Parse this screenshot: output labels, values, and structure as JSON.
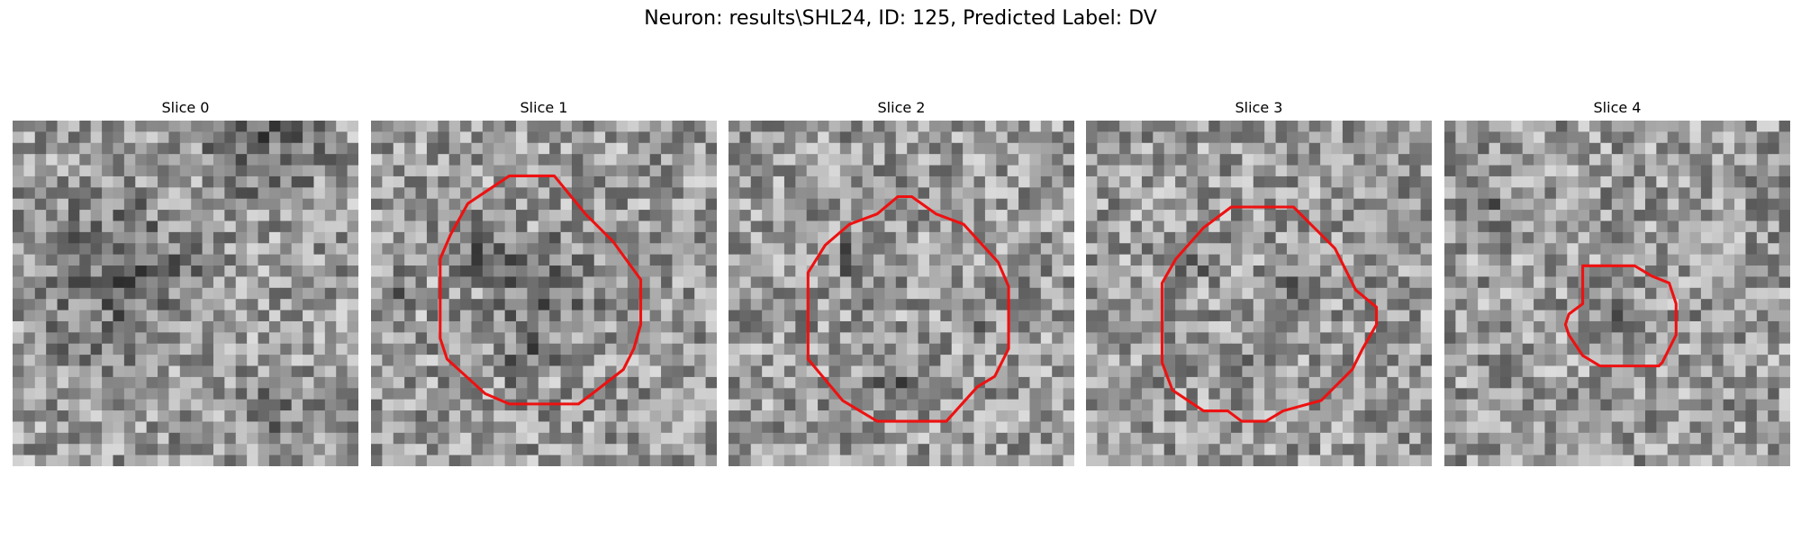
{
  "figure": {
    "title": "Neuron: results\\SHL24, ID: 125, Predicted Label: DV"
  },
  "panels": [
    {
      "title": "Slice 0",
      "seed": 11,
      "has_contour": false,
      "dark": [
        [
          0.72,
          0.05,
          0.25
        ],
        [
          0.3,
          0.45,
          0.35
        ],
        [
          0.75,
          0.82,
          0.12
        ]
      ],
      "contour": []
    },
    {
      "title": "Slice 1",
      "seed": 23,
      "has_contour": true,
      "dark": [
        [
          0.33,
          0.38,
          0.12
        ],
        [
          0.5,
          0.5,
          0.22
        ],
        [
          0.45,
          0.7,
          0.1
        ],
        [
          0.08,
          0.5,
          0.08
        ]
      ],
      "contour": [
        [
          0.4,
          0.16
        ],
        [
          0.53,
          0.16
        ],
        [
          0.62,
          0.27
        ],
        [
          0.7,
          0.35
        ],
        [
          0.78,
          0.46
        ],
        [
          0.78,
          0.59
        ],
        [
          0.76,
          0.66
        ],
        [
          0.73,
          0.72
        ],
        [
          0.64,
          0.79
        ],
        [
          0.6,
          0.82
        ],
        [
          0.4,
          0.82
        ],
        [
          0.33,
          0.79
        ],
        [
          0.22,
          0.69
        ],
        [
          0.2,
          0.63
        ],
        [
          0.2,
          0.4
        ],
        [
          0.23,
          0.33
        ],
        [
          0.28,
          0.24
        ]
      ]
    },
    {
      "title": "Slice 2",
      "seed": 37,
      "has_contour": true,
      "dark": [
        [
          0.35,
          0.4,
          0.08
        ],
        [
          0.48,
          0.78,
          0.1
        ],
        [
          0.05,
          0.6,
          0.06
        ],
        [
          0.7,
          0.55,
          0.08
        ]
      ],
      "contour": [
        [
          0.49,
          0.22
        ],
        [
          0.53,
          0.22
        ],
        [
          0.6,
          0.27
        ],
        [
          0.68,
          0.3
        ],
        [
          0.78,
          0.41
        ],
        [
          0.81,
          0.48
        ],
        [
          0.81,
          0.66
        ],
        [
          0.77,
          0.74
        ],
        [
          0.72,
          0.77
        ],
        [
          0.63,
          0.87
        ],
        [
          0.43,
          0.87
        ],
        [
          0.33,
          0.81
        ],
        [
          0.23,
          0.69
        ],
        [
          0.23,
          0.44
        ],
        [
          0.28,
          0.36
        ],
        [
          0.35,
          0.3
        ],
        [
          0.43,
          0.27
        ]
      ]
    },
    {
      "title": "Slice 3",
      "seed": 53,
      "has_contour": true,
      "dark": [
        [
          0.3,
          0.42,
          0.08
        ],
        [
          0.45,
          0.72,
          0.1
        ],
        [
          0.6,
          0.5,
          0.08
        ]
      ],
      "contour": [
        [
          0.42,
          0.25
        ],
        [
          0.6,
          0.25
        ],
        [
          0.66,
          0.31
        ],
        [
          0.72,
          0.37
        ],
        [
          0.78,
          0.49
        ],
        [
          0.84,
          0.54
        ],
        [
          0.84,
          0.59
        ],
        [
          0.8,
          0.66
        ],
        [
          0.77,
          0.72
        ],
        [
          0.68,
          0.81
        ],
        [
          0.57,
          0.84
        ],
        [
          0.52,
          0.87
        ],
        [
          0.45,
          0.87
        ],
        [
          0.41,
          0.84
        ],
        [
          0.34,
          0.84
        ],
        [
          0.25,
          0.78
        ],
        [
          0.22,
          0.7
        ],
        [
          0.22,
          0.47
        ],
        [
          0.26,
          0.4
        ],
        [
          0.34,
          0.31
        ]
      ]
    },
    {
      "title": "Slice 4",
      "seed": 71,
      "has_contour": true,
      "dark": [
        [
          0.1,
          0.25,
          0.1
        ],
        [
          0.5,
          0.6,
          0.1
        ],
        [
          0.92,
          0.2,
          0.06
        ]
      ],
      "contour": [
        [
          0.4,
          0.42
        ],
        [
          0.55,
          0.42
        ],
        [
          0.6,
          0.45
        ],
        [
          0.65,
          0.47
        ],
        [
          0.67,
          0.53
        ],
        [
          0.67,
          0.62
        ],
        [
          0.63,
          0.7
        ],
        [
          0.62,
          0.71
        ],
        [
          0.45,
          0.71
        ],
        [
          0.4,
          0.68
        ],
        [
          0.36,
          0.62
        ],
        [
          0.35,
          0.59
        ],
        [
          0.36,
          0.56
        ],
        [
          0.4,
          0.53
        ]
      ]
    }
  ],
  "colors": {
    "contour": "#ee1111"
  }
}
